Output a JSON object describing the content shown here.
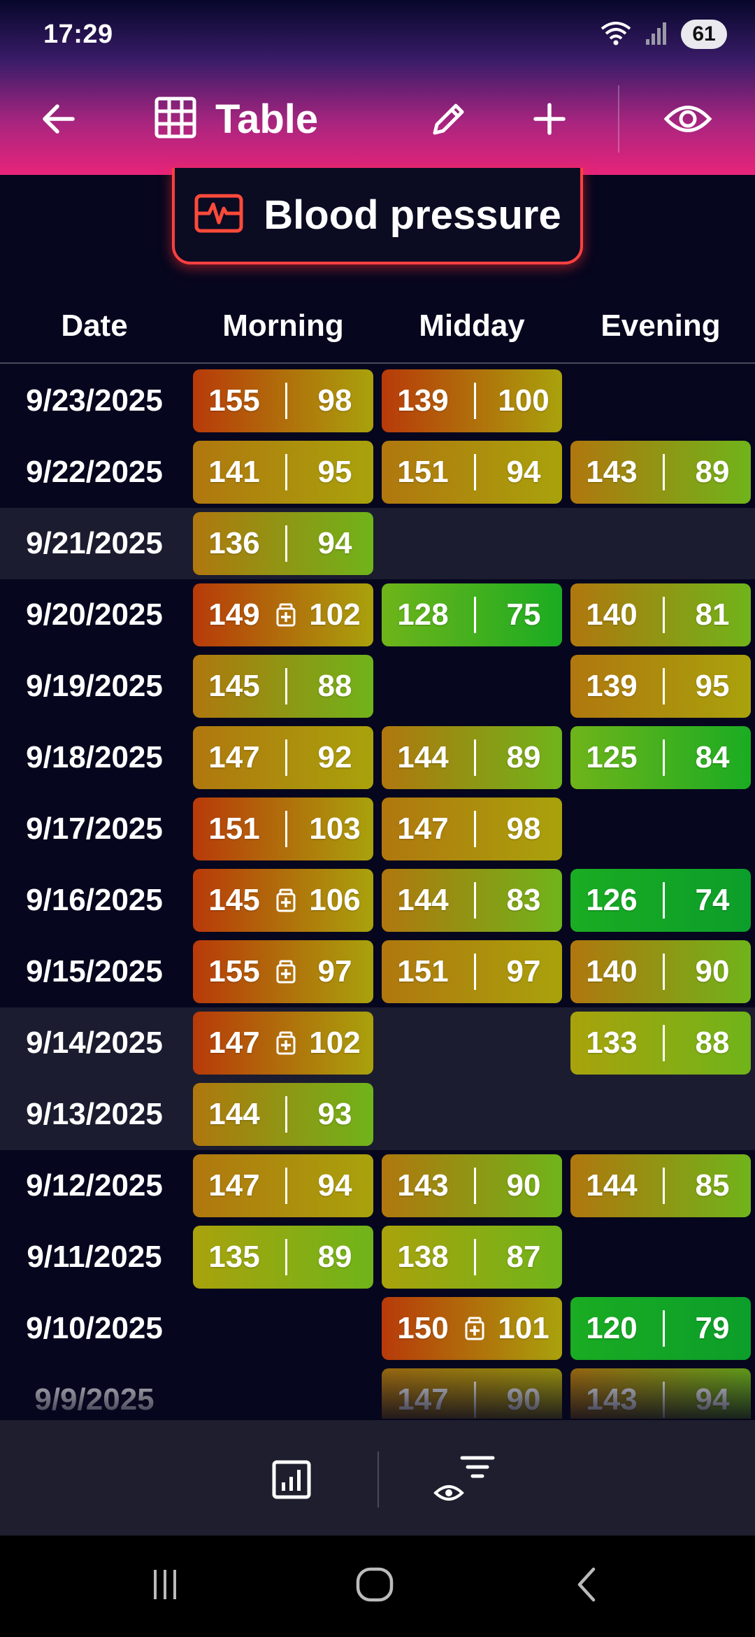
{
  "status_bar": {
    "time": "17:29",
    "battery": "61"
  },
  "app_bar": {
    "title": "Table",
    "icons": [
      "back-arrow-icon",
      "table-grid-icon",
      "edit-pencil-icon",
      "add-plus-icon",
      "visibility-eye-icon"
    ]
  },
  "chip": {
    "label": "Blood pressure",
    "icon": "heart-monitor-icon",
    "accent": "#ff4040"
  },
  "table": {
    "columns": [
      "Date",
      "Morning",
      "Midday",
      "Evening"
    ],
    "rows": [
      {
        "date": "9/23/2025",
        "morning": {
          "sys": "155",
          "dia": "98",
          "med": false
        },
        "midday": {
          "sys": "139",
          "dia": "100",
          "med": false
        },
        "evening": null
      },
      {
        "date": "9/22/2025",
        "morning": {
          "sys": "141",
          "dia": "95",
          "med": false
        },
        "midday": {
          "sys": "151",
          "dia": "94",
          "med": false
        },
        "evening": {
          "sys": "143",
          "dia": "89",
          "med": false
        }
      },
      {
        "date": "9/21/2025",
        "morning": {
          "sys": "136",
          "dia": "94",
          "med": false
        },
        "midday": null,
        "evening": null
      },
      {
        "date": "9/20/2025",
        "morning": {
          "sys": "149",
          "dia": "102",
          "med": true
        },
        "midday": {
          "sys": "128",
          "dia": "75",
          "med": false
        },
        "evening": {
          "sys": "140",
          "dia": "81",
          "med": false
        }
      },
      {
        "date": "9/19/2025",
        "morning": {
          "sys": "145",
          "dia": "88",
          "med": false
        },
        "midday": null,
        "evening": {
          "sys": "139",
          "dia": "95",
          "med": false
        }
      },
      {
        "date": "9/18/2025",
        "morning": {
          "sys": "147",
          "dia": "92",
          "med": false
        },
        "midday": {
          "sys": "144",
          "dia": "89",
          "med": false
        },
        "evening": {
          "sys": "125",
          "dia": "84",
          "med": false
        }
      },
      {
        "date": "9/17/2025",
        "morning": {
          "sys": "151",
          "dia": "103",
          "med": false
        },
        "midday": {
          "sys": "147",
          "dia": "98",
          "med": false
        },
        "evening": null
      },
      {
        "date": "9/16/2025",
        "morning": {
          "sys": "145",
          "dia": "106",
          "med": true
        },
        "midday": {
          "sys": "144",
          "dia": "83",
          "med": false
        },
        "evening": {
          "sys": "126",
          "dia": "74",
          "med": false
        }
      },
      {
        "date": "9/15/2025",
        "morning": {
          "sys": "155",
          "dia": "97",
          "med": true
        },
        "midday": {
          "sys": "151",
          "dia": "97",
          "med": false
        },
        "evening": {
          "sys": "140",
          "dia": "90",
          "med": false
        }
      },
      {
        "date": "9/14/2025",
        "morning": {
          "sys": "147",
          "dia": "102",
          "med": true
        },
        "midday": null,
        "evening": {
          "sys": "133",
          "dia": "88",
          "med": false
        }
      },
      {
        "date": "9/13/2025",
        "morning": {
          "sys": "144",
          "dia": "93",
          "med": false
        },
        "midday": null,
        "evening": null
      },
      {
        "date": "9/12/2025",
        "morning": {
          "sys": "147",
          "dia": "94",
          "med": false
        },
        "midday": {
          "sys": "143",
          "dia": "90",
          "med": false
        },
        "evening": {
          "sys": "144",
          "dia": "85",
          "med": false
        }
      },
      {
        "date": "9/11/2025",
        "morning": {
          "sys": "135",
          "dia": "89",
          "med": false
        },
        "midday": {
          "sys": "138",
          "dia": "87",
          "med": false
        },
        "evening": null
      },
      {
        "date": "9/10/2025",
        "morning": null,
        "midday": {
          "sys": "150",
          "dia": "101",
          "med": true
        },
        "evening": {
          "sys": "120",
          "dia": "79",
          "med": false
        }
      },
      {
        "date": "9/9/2025",
        "morning": null,
        "midday": {
          "sys": "147",
          "dia": "90",
          "med": false
        },
        "evening": {
          "sys": "143",
          "dia": "94",
          "med": false
        }
      }
    ]
  },
  "bottom_bar": {
    "icons": [
      "chart-icon",
      "filter-visibility-icon"
    ]
  },
  "nav_bar": {
    "icons": [
      "recents-icon",
      "home-icon",
      "back-icon"
    ]
  },
  "colors": {
    "background": "#06061e",
    "alt_row": "#1c1c30",
    "scale_red": "#b83a0a",
    "scale_orange": "#b0770e",
    "scale_yellow": "#a9a20c",
    "scale_lime": "#6fb41a",
    "scale_green": "#1aac22"
  }
}
